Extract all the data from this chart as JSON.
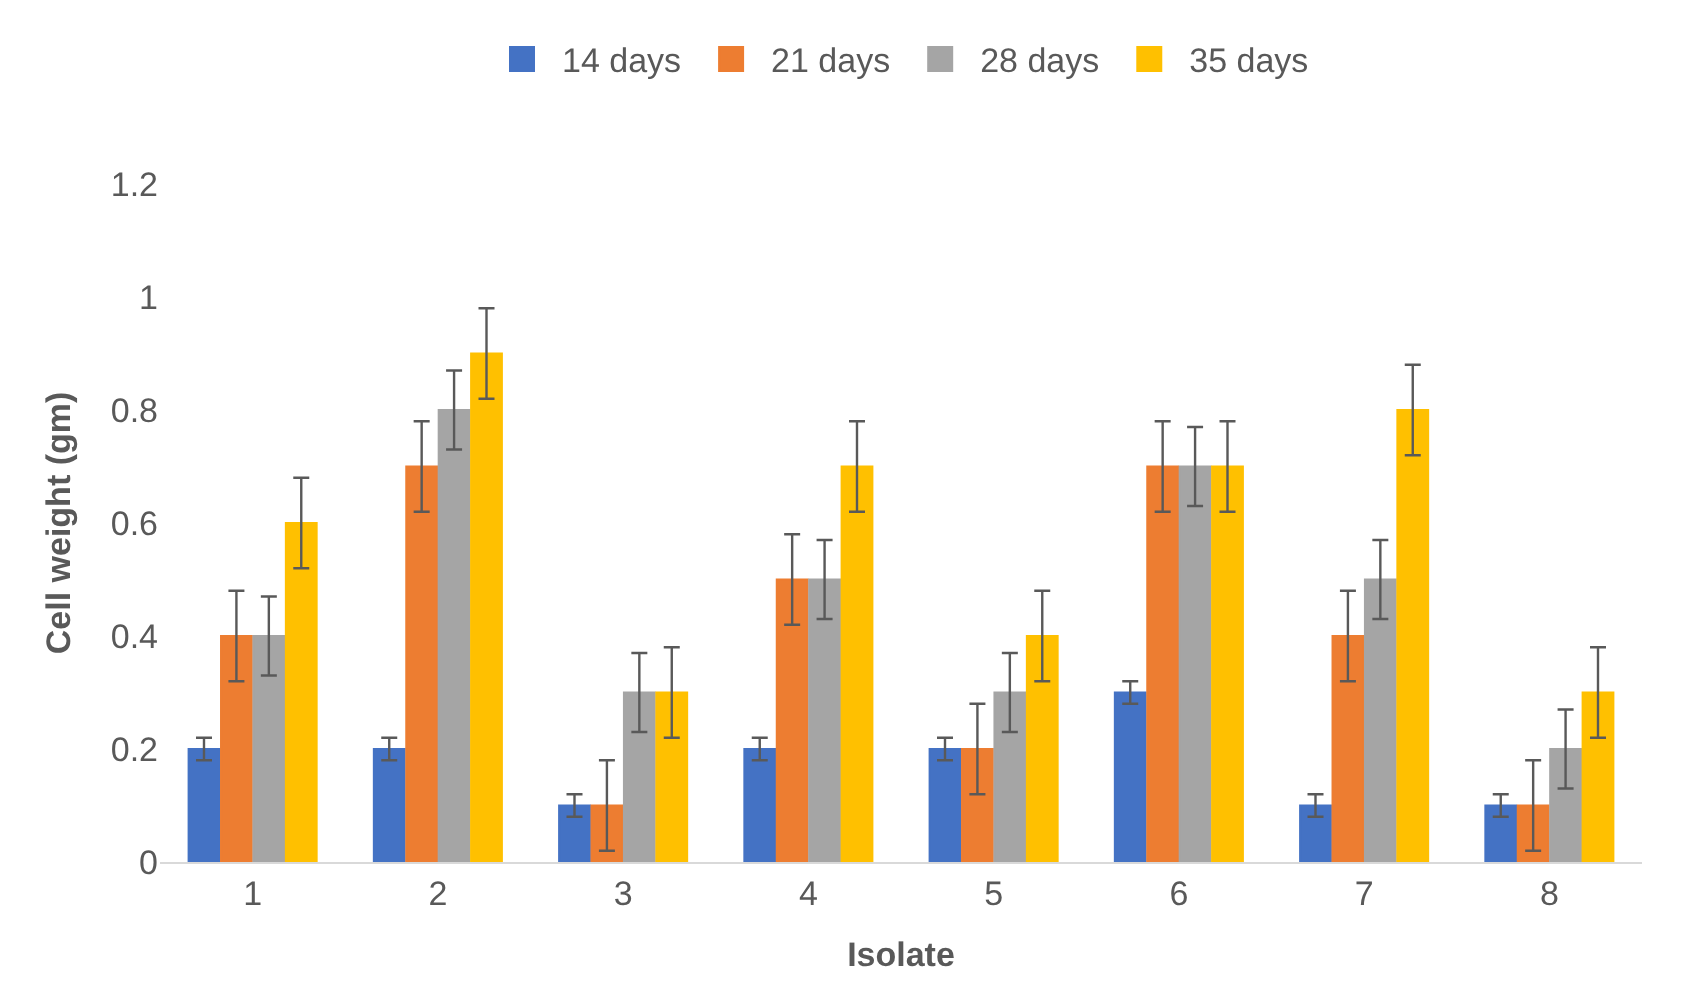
{
  "chart_data": {
    "type": "bar",
    "xlabel": "Isolate",
    "ylabel": "Cell weight (gm)",
    "categories": [
      "1",
      "2",
      "3",
      "4",
      "5",
      "6",
      "7",
      "8"
    ],
    "series": [
      {
        "name": "14 days",
        "color": "#4472c4",
        "values": [
          0.2,
          0.2,
          0.1,
          0.2,
          0.2,
          0.3,
          0.1,
          0.1
        ],
        "errors": [
          0.02,
          0.02,
          0.02,
          0.02,
          0.02,
          0.02,
          0.02,
          0.02
        ]
      },
      {
        "name": "21 days",
        "color": "#ed7d31",
        "values": [
          0.4,
          0.7,
          0.1,
          0.5,
          0.2,
          0.7,
          0.4,
          0.1
        ],
        "errors": [
          0.08,
          0.08,
          0.08,
          0.08,
          0.08,
          0.08,
          0.08,
          0.08
        ]
      },
      {
        "name": "28 days",
        "color": "#a5a5a5",
        "values": [
          0.4,
          0.8,
          0.3,
          0.5,
          0.3,
          0.7,
          0.5,
          0.2
        ],
        "errors": [
          0.07,
          0.07,
          0.07,
          0.07,
          0.07,
          0.07,
          0.07,
          0.07
        ]
      },
      {
        "name": "35 days",
        "color": "#ffc000",
        "values": [
          0.6,
          0.9,
          0.3,
          0.7,
          0.4,
          0.7,
          0.8,
          0.3
        ],
        "errors": [
          0.08,
          0.08,
          0.08,
          0.08,
          0.08,
          0.08,
          0.08,
          0.08
        ]
      }
    ],
    "ylim": [
      0,
      1.2
    ],
    "yticks": [
      0,
      0.2,
      0.4,
      0.6,
      0.8,
      1,
      1.2
    ],
    "legend": "top"
  }
}
